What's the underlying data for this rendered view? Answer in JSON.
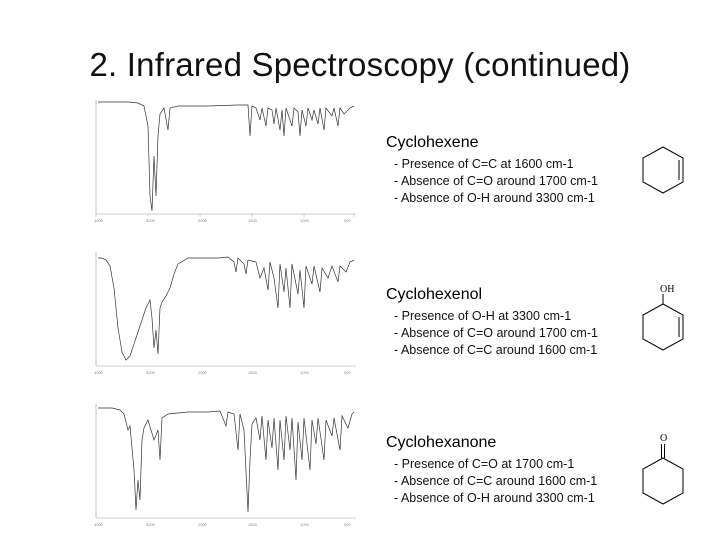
{
  "slide": {
    "title": "2. Infrared Spectroscopy (continued)"
  },
  "compounds": [
    {
      "name": "Cyclohexene",
      "notes": [
        "-  Presence of C=C at 1600 cm-1",
        "-  Absence of C=O around 1700 cm-1",
        "-  Absence of O-H around 3300 cm-1"
      ],
      "substituent": ""
    },
    {
      "name": "Cyclohexenol",
      "notes": [
        "-  Presence of O-H at 3300 cm-1",
        "-  Absence of C=O around 1700 cm-1",
        "-  Absence of C=C around 1600 cm-1"
      ],
      "substituent": "OH"
    },
    {
      "name": "Cyclohexanone",
      "notes": [
        "-  Presence of C=O at 1700 cm-1",
        "-  Absence of C=C around 1600 cm-1",
        "-  Absence of O-H around 3300 cm-1"
      ],
      "substituent": "O"
    }
  ],
  "colors": {
    "title": "#111111",
    "spectrum_line": "#333333",
    "text": "#000000"
  }
}
